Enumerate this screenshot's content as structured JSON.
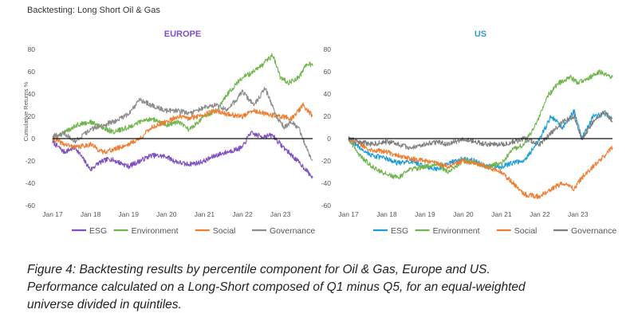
{
  "page_title": "Backtesting: Long Short Oil & Gas",
  "caption_lines": [
    "Figure 4: Backtesting results by percentile component for Oil & Gas, Europe and US.",
    "Performance calculated on a Long-Short composed of Q1 minus Q5, for an equal-weighted",
    "universe divided in quintiles."
  ],
  "colors": {
    "ESG": "#7f4fbf",
    "Environment": "#6fb54d",
    "Social": "#ed7d31",
    "Governance": "#8c8c8c"
  },
  "chart_data": [
    {
      "type": "line",
      "title": "EUROPE",
      "title_color": "#7f4fbf",
      "ylabel": "Cumulative Returns %",
      "xlabel": "",
      "x_ticks": [
        "Jan 17",
        "Jan 18",
        "Jan 19",
        "Jan 20",
        "Jan 21",
        "Jan 22",
        "Jan 23"
      ],
      "x_range": [
        2017.0,
        2023.85
      ],
      "ylim": [
        -60,
        80
      ],
      "y_ticks": [
        -60,
        -40,
        -20,
        0,
        20,
        40,
        60,
        80
      ],
      "legend": "bottom",
      "series": [
        {
          "name": "ESG",
          "x": [
            2017.0,
            2017.3,
            2017.6,
            2018.0,
            2018.2,
            2018.5,
            2018.8,
            2019.0,
            2019.3,
            2019.6,
            2020.0,
            2020.2,
            2020.5,
            2020.8,
            2021.0,
            2021.3,
            2021.6,
            2022.0,
            2022.2,
            2022.5,
            2022.8,
            2023.0,
            2023.3,
            2023.6,
            2023.85
          ],
          "values": [
            -3,
            -12,
            -8,
            -28,
            -22,
            -18,
            -22,
            -25,
            -20,
            -15,
            -16,
            -20,
            -23,
            -22,
            -20,
            -15,
            -12,
            -8,
            5,
            2,
            3,
            -5,
            -15,
            -25,
            -35
          ]
        },
        {
          "name": "Environment",
          "x": [
            2017.0,
            2017.3,
            2017.6,
            2018.0,
            2018.3,
            2018.6,
            2019.0,
            2019.3,
            2019.6,
            2020.0,
            2020.3,
            2020.6,
            2021.0,
            2021.3,
            2021.6,
            2022.0,
            2022.2,
            2022.5,
            2022.8,
            2023.0,
            2023.2,
            2023.5,
            2023.7,
            2023.85
          ],
          "values": [
            0,
            5,
            12,
            15,
            10,
            6,
            10,
            15,
            18,
            12,
            15,
            8,
            20,
            25,
            40,
            55,
            58,
            65,
            75,
            55,
            50,
            55,
            68,
            65
          ]
        },
        {
          "name": "Social",
          "x": [
            2017.0,
            2017.3,
            2017.6,
            2018.0,
            2018.3,
            2018.6,
            2019.0,
            2019.3,
            2019.6,
            2020.0,
            2020.3,
            2020.6,
            2021.0,
            2021.3,
            2021.6,
            2022.0,
            2022.3,
            2022.6,
            2023.0,
            2023.3,
            2023.6,
            2023.85
          ],
          "values": [
            0,
            -5,
            -8,
            -5,
            -12,
            -10,
            -5,
            0,
            10,
            15,
            20,
            18,
            22,
            25,
            22,
            20,
            25,
            22,
            20,
            18,
            30,
            20
          ]
        },
        {
          "name": "Governance",
          "x": [
            2017.0,
            2017.3,
            2017.6,
            2018.0,
            2018.3,
            2018.6,
            2019.0,
            2019.3,
            2019.6,
            2020.0,
            2020.3,
            2020.6,
            2021.0,
            2021.3,
            2021.6,
            2022.0,
            2022.3,
            2022.6,
            2022.9,
            2023.1,
            2023.3,
            2023.5,
            2023.7,
            2023.85
          ],
          "values": [
            2,
            5,
            -2,
            8,
            12,
            15,
            22,
            35,
            30,
            25,
            25,
            22,
            28,
            30,
            25,
            42,
            30,
            45,
            20,
            10,
            15,
            8,
            -10,
            -20
          ]
        }
      ]
    },
    {
      "type": "line",
      "title": "US",
      "title_color": "#2e9bd6",
      "ylabel": "",
      "xlabel": "",
      "x_ticks": [
        "Jan 17",
        "Jan 18",
        "Jan 19",
        "Jan 20",
        "Jan 21",
        "Jan 22",
        "Jan 23"
      ],
      "x_range": [
        2017.0,
        2023.9
      ],
      "ylim": [
        -60,
        80
      ],
      "y_ticks": [
        -60,
        -40,
        -20,
        0,
        20,
        40,
        60,
        80
      ],
      "legend": "bottom",
      "colors": {
        "ESG": "#1c9dd9",
        "Environment": "#6fb54d",
        "Social": "#ed7d31",
        "Governance": "#7f7f7f"
      },
      "series": [
        {
          "name": "ESG",
          "x": [
            2017.0,
            2017.3,
            2017.6,
            2018.0,
            2018.3,
            2018.6,
            2019.0,
            2019.3,
            2019.6,
            2020.0,
            2020.3,
            2020.6,
            2021.0,
            2021.3,
            2021.6,
            2022.0,
            2022.3,
            2022.6,
            2022.9,
            2023.1,
            2023.4,
            2023.7,
            2023.9
          ],
          "values": [
            0,
            -8,
            -15,
            -18,
            -22,
            -20,
            -25,
            -28,
            -22,
            -18,
            -20,
            -25,
            -25,
            -22,
            -20,
            0,
            20,
            10,
            25,
            0,
            20,
            22,
            18
          ]
        },
        {
          "name": "Environment",
          "x": [
            2017.0,
            2017.3,
            2017.6,
            2018.0,
            2018.3,
            2018.6,
            2019.0,
            2019.3,
            2019.6,
            2020.0,
            2020.3,
            2020.6,
            2021.0,
            2021.3,
            2021.6,
            2022.0,
            2022.2,
            2022.5,
            2022.8,
            2023.0,
            2023.3,
            2023.6,
            2023.9
          ],
          "values": [
            0,
            -15,
            -25,
            -32,
            -35,
            -28,
            -25,
            -22,
            -30,
            -20,
            -22,
            -25,
            -22,
            -10,
            -5,
            20,
            38,
            50,
            55,
            50,
            55,
            60,
            55
          ]
        },
        {
          "name": "Social",
          "x": [
            2017.0,
            2017.3,
            2017.6,
            2018.0,
            2018.3,
            2018.6,
            2019.0,
            2019.3,
            2019.6,
            2020.0,
            2020.3,
            2020.6,
            2021.0,
            2021.3,
            2021.6,
            2022.0,
            2022.3,
            2022.6,
            2022.9,
            2023.1,
            2023.4,
            2023.7,
            2023.9
          ],
          "values": [
            0,
            -5,
            -10,
            -12,
            -15,
            -18,
            -20,
            -22,
            -25,
            -20,
            -22,
            -25,
            -30,
            -40,
            -50,
            -52,
            -45,
            -40,
            -45,
            -35,
            -25,
            -15,
            -8
          ]
        },
        {
          "name": "Governance",
          "x": [
            2017.0,
            2017.3,
            2017.6,
            2018.0,
            2018.3,
            2018.6,
            2019.0,
            2019.3,
            2019.6,
            2020.0,
            2020.3,
            2020.6,
            2021.0,
            2021.3,
            2021.6,
            2022.0,
            2022.3,
            2022.6,
            2022.9,
            2023.1,
            2023.4,
            2023.7,
            2023.9
          ],
          "values": [
            0,
            -3,
            -5,
            -3,
            -5,
            -8,
            -5,
            -3,
            -5,
            0,
            -3,
            -5,
            -5,
            -3,
            0,
            -5,
            5,
            15,
            20,
            0,
            15,
            25,
            15
          ]
        }
      ]
    }
  ]
}
